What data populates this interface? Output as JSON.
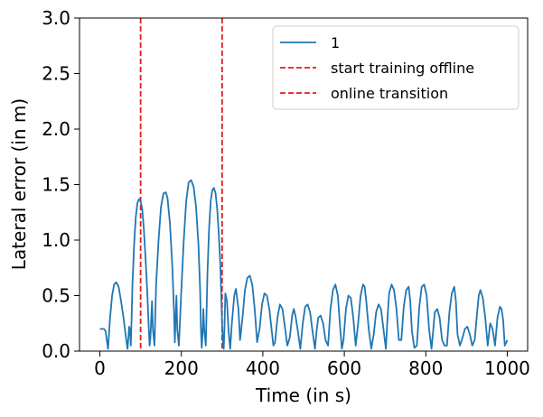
{
  "chart_data": {
    "type": "line",
    "title": "",
    "xlabel": "Time (in s)",
    "ylabel": "Lateral error (in m)",
    "xlim": [
      -50,
      1050
    ],
    "ylim": [
      0,
      3.0
    ],
    "xticks": [
      0,
      200,
      400,
      600,
      800,
      1000
    ],
    "xtick_labels": [
      "0",
      "200",
      "400",
      "600",
      "800",
      "1000"
    ],
    "yticks": [
      0,
      0.5,
      1.0,
      1.5,
      2.0,
      2.5,
      3.0
    ],
    "ytick_labels": [
      "0.0",
      "0.5",
      "1.0",
      "1.5",
      "2.0",
      "2.5",
      "3.0"
    ],
    "grid": false,
    "legend_position": "top-right",
    "series": [
      {
        "name": "1",
        "color": "#1f77b4",
        "x": [
          0,
          10,
          14,
          17,
          20,
          25,
          30,
          35,
          40,
          46,
          52,
          58,
          64,
          68,
          70,
          72,
          74,
          76,
          78,
          80,
          84,
          88,
          92,
          96,
          100,
          104,
          108,
          112,
          116,
          120,
          122,
          124,
          126,
          128,
          130,
          134,
          138,
          144,
          150,
          156,
          162,
          166,
          172,
          178,
          182,
          184,
          186,
          188,
          190,
          194,
          200,
          206,
          212,
          218,
          224,
          230,
          236,
          242,
          246,
          248,
          250,
          252,
          254,
          256,
          260,
          264,
          268,
          272,
          276,
          280,
          284,
          288,
          292,
          296,
          298,
          300,
          302,
          304,
          306,
          308,
          312,
          316,
          320,
          324,
          330,
          334,
          336,
          340,
          344,
          350,
          356,
          362,
          368,
          374,
          380,
          386,
          392,
          398,
          404,
          410,
          416,
          422,
          426,
          430,
          436,
          442,
          448,
          454,
          460,
          466,
          472,
          476,
          480,
          486,
          492,
          498,
          504,
          510,
          516,
          522,
          528,
          532,
          536,
          542,
          548,
          554,
          560,
          566,
          572,
          578,
          584,
          590,
          594,
          598,
          604,
          610,
          616,
          622,
          628,
          634,
          640,
          646,
          650,
          654,
          660,
          666,
          672,
          678,
          684,
          690,
          696,
          702,
          706,
          710,
          716,
          722,
          728,
          734,
          740,
          746,
          752,
          758,
          762,
          766,
          772,
          778,
          784,
          790,
          796,
          802,
          808,
          814,
          818,
          822,
          828,
          834,
          840,
          846,
          852,
          858,
          864,
          870,
          874,
          878,
          884,
          890,
          896,
          902,
          908,
          914,
          920,
          926,
          930,
          934,
          940,
          946,
          952,
          958,
          964,
          970,
          976,
          982,
          986,
          990,
          994,
          1000
        ],
        "y": [
          0.2,
          0.2,
          0.18,
          0.1,
          0.02,
          0.3,
          0.5,
          0.6,
          0.62,
          0.58,
          0.45,
          0.3,
          0.12,
          0.02,
          0.12,
          0.22,
          0.18,
          0.05,
          0.3,
          0.6,
          0.95,
          1.2,
          1.33,
          1.37,
          1.35,
          1.28,
          1.1,
          0.85,
          0.55,
          0.2,
          0.05,
          0.12,
          0.3,
          0.45,
          0.2,
          0.05,
          0.6,
          1.0,
          1.3,
          1.42,
          1.43,
          1.38,
          1.15,
          0.75,
          0.35,
          0.08,
          0.3,
          0.5,
          0.2,
          0.05,
          0.55,
          1.0,
          1.35,
          1.52,
          1.54,
          1.48,
          1.3,
          0.95,
          0.55,
          0.2,
          0.03,
          0.15,
          0.38,
          0.2,
          0.05,
          0.7,
          1.1,
          1.35,
          1.45,
          1.47,
          1.42,
          1.28,
          1.05,
          0.75,
          0.5,
          0.25,
          0.1,
          0.02,
          0.22,
          0.52,
          0.45,
          0.18,
          0.02,
          0.25,
          0.5,
          0.56,
          0.5,
          0.38,
          0.1,
          0.3,
          0.55,
          0.66,
          0.68,
          0.6,
          0.38,
          0.08,
          0.2,
          0.42,
          0.52,
          0.5,
          0.38,
          0.18,
          0.05,
          0.08,
          0.3,
          0.42,
          0.38,
          0.22,
          0.05,
          0.12,
          0.32,
          0.38,
          0.32,
          0.18,
          0.02,
          0.25,
          0.4,
          0.42,
          0.35,
          0.18,
          0.02,
          0.18,
          0.3,
          0.32,
          0.25,
          0.1,
          0.05,
          0.38,
          0.55,
          0.6,
          0.5,
          0.2,
          0.02,
          0.1,
          0.38,
          0.5,
          0.48,
          0.3,
          0.05,
          0.25,
          0.5,
          0.6,
          0.58,
          0.45,
          0.2,
          0.02,
          0.15,
          0.35,
          0.42,
          0.38,
          0.2,
          0.02,
          0.3,
          0.52,
          0.6,
          0.55,
          0.38,
          0.1,
          0.1,
          0.4,
          0.55,
          0.58,
          0.45,
          0.18,
          0.03,
          0.05,
          0.4,
          0.58,
          0.6,
          0.5,
          0.2,
          0.02,
          0.18,
          0.35,
          0.38,
          0.3,
          0.1,
          0.05,
          0.05,
          0.35,
          0.52,
          0.58,
          0.45,
          0.15,
          0.05,
          0.12,
          0.2,
          0.22,
          0.15,
          0.05,
          0.1,
          0.35,
          0.5,
          0.55,
          0.48,
          0.3,
          0.05,
          0.25,
          0.2,
          0.05,
          0.3,
          0.4,
          0.38,
          0.28,
          0.05,
          0.1
        ]
      }
    ],
    "vlines": [
      {
        "name": "start training offline",
        "x": 100,
        "color": "#e41a1c",
        "style": "dashed"
      },
      {
        "name": "online transition",
        "x": 300,
        "color": "#e41a1c",
        "style": "dashed"
      }
    ]
  }
}
